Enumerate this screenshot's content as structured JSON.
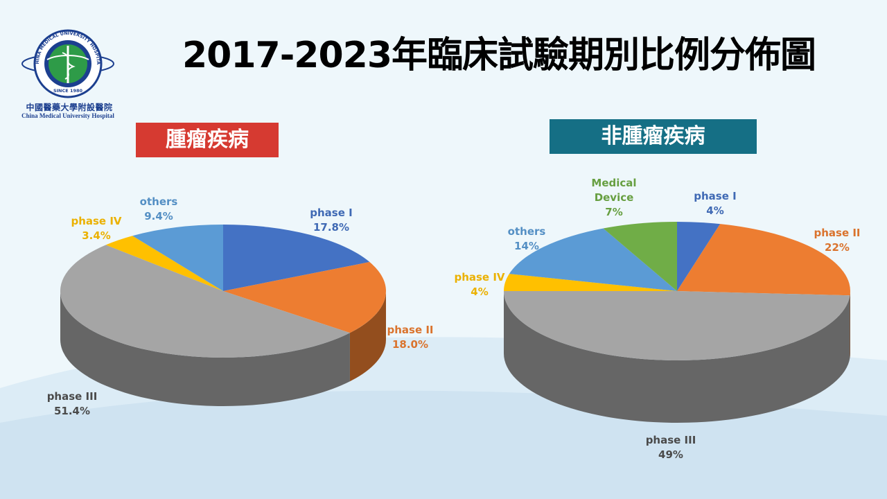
{
  "title": "2017-2023年臨床試驗期別比例分佈圖",
  "logo": {
    "ring_text": "CHINA MEDICAL UNIVERSITY HOSPITAL",
    "since": "SINCE 1980",
    "cn_name": "中國醫藥大學附設醫院",
    "en_name": "China Medical University Hospital"
  },
  "colors": {
    "background": "#eef7fb",
    "badge_tumor": "#d63a31",
    "badge_non_tumor": "#156f85",
    "phase_I": "#4472c4",
    "phase_II": "#ed7d31",
    "phase_III": "#a5a5a5",
    "phase_IV": "#ffc000",
    "others": "#5b9bd5",
    "medical_device": "#70ad47"
  },
  "chart_data": [
    {
      "type": "pie",
      "title": "腫瘤疾病",
      "series": [
        {
          "name": "phase I",
          "value": 17.8,
          "label": "17.8%",
          "color": "#4472c4"
        },
        {
          "name": "phase II",
          "value": 18.0,
          "label": "18.0%",
          "color": "#ed7d31"
        },
        {
          "name": "phase III",
          "value": 51.4,
          "label": "51.4%",
          "color": "#a5a5a5"
        },
        {
          "name": "phase IV",
          "value": 3.4,
          "label": "3.4%",
          "color": "#ffc000"
        },
        {
          "name": "others",
          "value": 9.4,
          "label": "9.4%",
          "color": "#5b9bd5"
        }
      ]
    },
    {
      "type": "pie",
      "title": "非腫瘤疾病",
      "series": [
        {
          "name": "phase I",
          "value": 4,
          "label": "4%",
          "color": "#4472c4"
        },
        {
          "name": "phase II",
          "value": 22,
          "label": "22%",
          "color": "#ed7d31"
        },
        {
          "name": "phase III",
          "value": 49,
          "label": "49%",
          "color": "#a5a5a5"
        },
        {
          "name": "phase IV",
          "value": 4,
          "label": "4%",
          "color": "#ffc000"
        },
        {
          "name": "others",
          "value": 14,
          "label": "14%",
          "color": "#5b9bd5"
        },
        {
          "name": "Medical Device",
          "value": 7,
          "label": "7%",
          "color": "#70ad47"
        }
      ]
    }
  ]
}
